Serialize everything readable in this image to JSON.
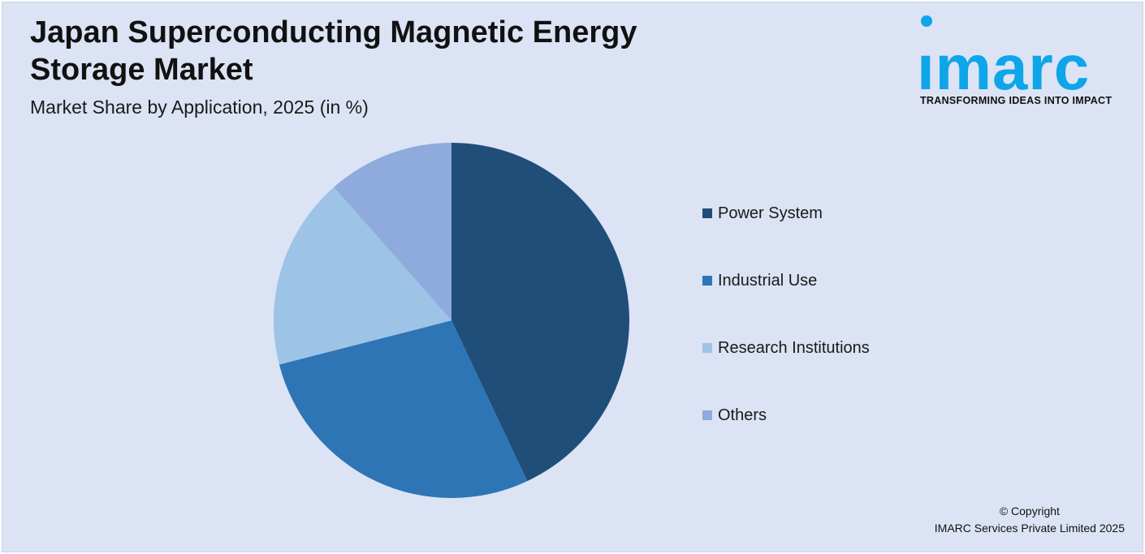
{
  "header": {
    "title": "Japan Superconducting Magnetic Energy Storage Market",
    "subtitle": "Market Share by Application, 2025 (in %)"
  },
  "logo": {
    "word": "ımarc",
    "tagline": "TRANSFORMING IDEAS INTO IMPACT",
    "color": "#0ea5e9"
  },
  "chart_data": {
    "type": "pie",
    "title": "Japan Superconducting Magnetic Energy Storage Market",
    "subtitle": "Market Share by Application, 2025 (in %)",
    "legend_position": "right",
    "categories": [
      "Power System",
      "Industrial Use",
      "Research Institutions",
      "Others"
    ],
    "values": [
      43,
      28,
      17.5,
      11.5
    ],
    "colors": [
      "#1f4e79",
      "#2e75b6",
      "#9dc3e6",
      "#8faadc"
    ]
  },
  "footer": {
    "copyright_line1": "© Copyright",
    "copyright_line2": "IMARC Services Private Limited 2025"
  }
}
